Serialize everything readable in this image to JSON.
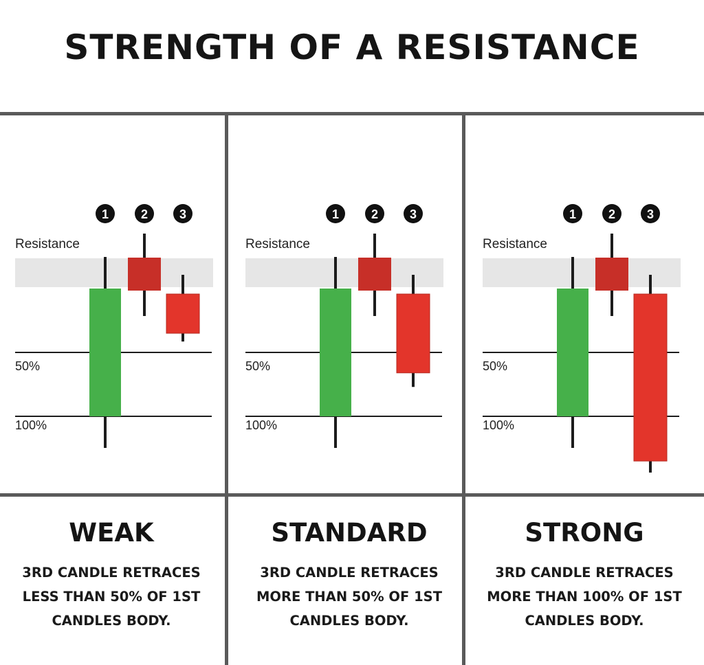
{
  "title": "STRENGTH OF A RESISTANCE",
  "colors": {
    "green": "#46b04a",
    "dark_red": "#c72f28",
    "red": "#e3352b",
    "line": "#1c1c1c",
    "band": "#e6e6e6"
  },
  "level_labels": {
    "resistance": "Resistance",
    "fifty": "50%",
    "hundred": "100%"
  },
  "candle_markers": [
    "1",
    "2",
    "3"
  ],
  "panels": [
    {
      "heading": "WEAK",
      "description": "3RD CANDLE RETRACES\nLESS THAN 50% OF 1ST\nCANDLES BODY.",
      "candle3": {
        "body_low_pct": 35,
        "wick_low_pct": 29
      }
    },
    {
      "heading": "STANDARD",
      "description": "3RD CANDLE RETRACES\nMORE THAN 50% OF 1ST\nCANDLES BODY.",
      "candle3": {
        "body_low_pct": 66,
        "wick_low_pct": 77
      }
    },
    {
      "heading": "STRONG",
      "description": "3RD CANDLE RETRACES\nMORE THAN 100% OF 1ST\nCANDLES BODY.",
      "candle3": {
        "body_low_pct": 135,
        "wick_low_pct": 144
      }
    }
  ]
}
